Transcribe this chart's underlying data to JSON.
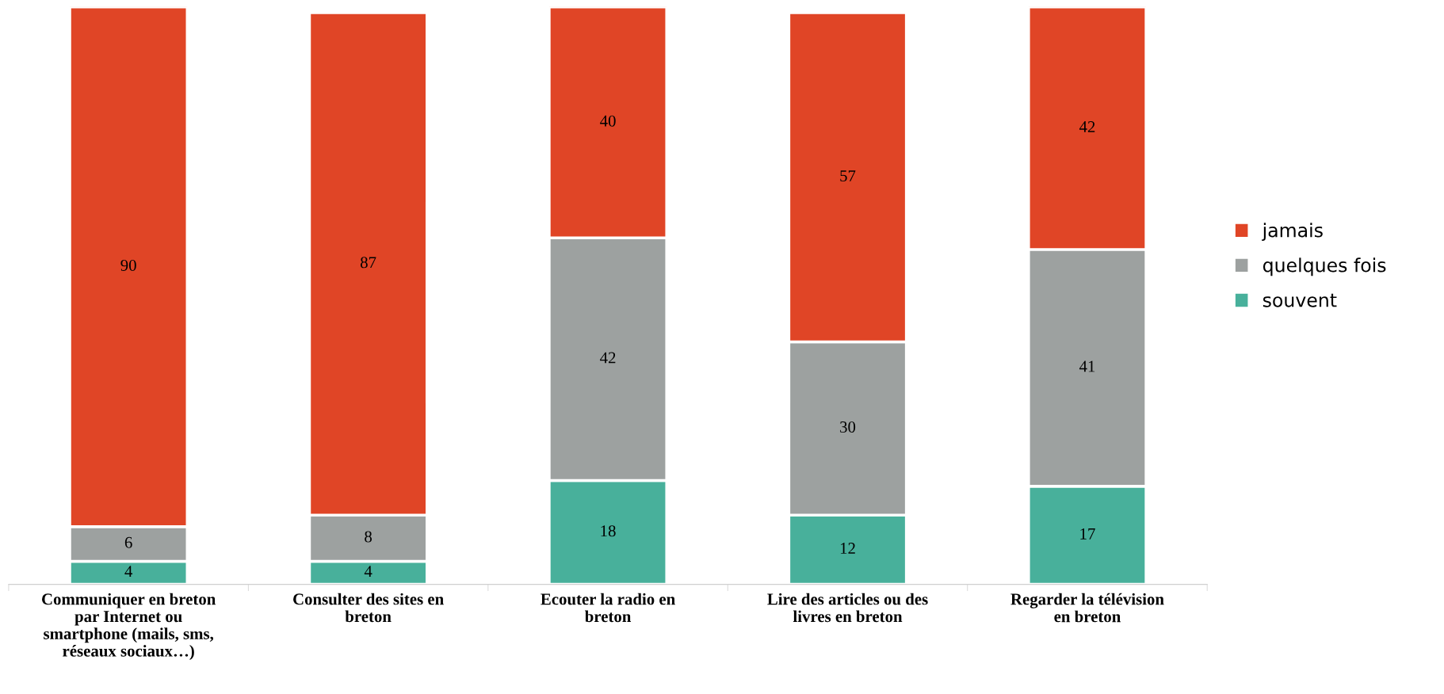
{
  "chart_data": {
    "type": "bar",
    "stacked": true,
    "data_labels": true,
    "legend": "right",
    "grid": false,
    "categories": [
      "Communiquer en breton par Internet ou smartphone (mails, sms, réseaux sociaux…)",
      "Consulter des sites en breton",
      "Ecouter la radio en breton",
      "Lire des articles ou des livres en breton",
      "Regarder la télévision en breton"
    ],
    "series": [
      {
        "name": "souvent",
        "color": "#48b09b",
        "values": [
          4,
          4,
          18,
          12,
          17
        ]
      },
      {
        "name": "quelques fois",
        "color": "#9da1a0",
        "values": [
          6,
          8,
          42,
          30,
          41
        ]
      },
      {
        "name": "jamais",
        "color": "#e04526",
        "values": [
          90,
          87,
          40,
          57,
          42
        ]
      }
    ]
  }
}
